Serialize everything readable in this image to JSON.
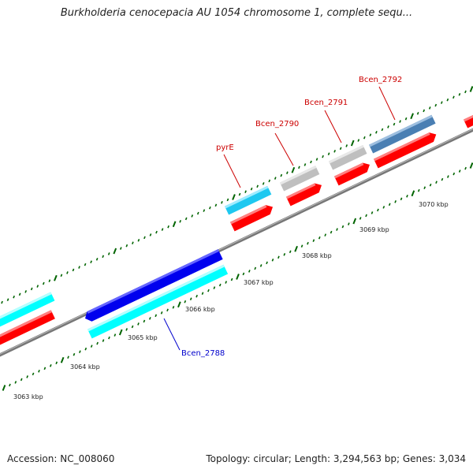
{
  "title": "Burkholderia cenocepacia AU 1054 chromosome 1, complete sequ...",
  "footer": {
    "accession": "Accession: NC_008060",
    "summary": "Topology: circular; Length: 3,294,563 bp; Genes: 3,034"
  },
  "scale_labels": {
    "k3063": "3063 kbp",
    "k3064": "3064 kbp",
    "k3065": "3065 kbp",
    "k3066": "3066 kbp",
    "k3067": "3067 kbp",
    "k3068": "3068 kbp",
    "k3069": "3069 kbp",
    "k3070": "3070 kbp"
  },
  "gene_labels": {
    "pyrE": "pyrE",
    "bcen2790": "Bcen_2790",
    "bcen2791": "Bcen_2791",
    "bcen2792": "Bcen_2792",
    "bcen2788": "Bcen_2788"
  },
  "colors": {
    "backbone": "#808080",
    "cds_red": "#ff0000",
    "gene_cyan": "#00ffff",
    "gene_blue": "#0000dd",
    "gene_light_blue": "#1ec8f0",
    "gene_gray": "#bfbfbf",
    "gene_steel": "#4a7fb3",
    "tick_green": "#006400",
    "label_red": "#cc0000",
    "label_blue": "#0000cc"
  }
}
